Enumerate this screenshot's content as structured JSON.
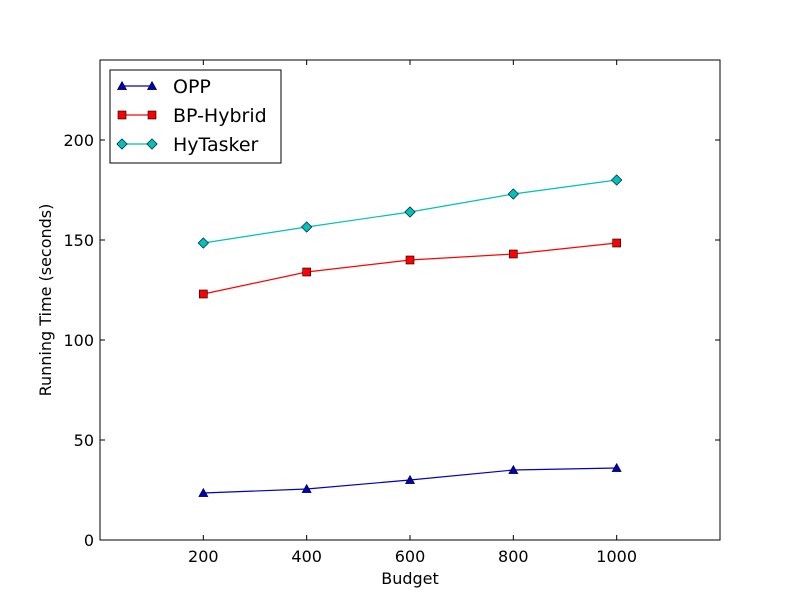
{
  "chart_data": {
    "type": "line",
    "title": "",
    "xlabel": "Budget",
    "ylabel": "Running Time (seconds)",
    "xlim": [
      0,
      1200
    ],
    "ylim": [
      0,
      240
    ],
    "x_ticks": [
      200,
      400,
      600,
      800,
      1000
    ],
    "y_ticks": [
      0,
      50,
      100,
      150,
      200
    ],
    "grid": false,
    "legend_placement": "upper-left",
    "x": [
      200,
      400,
      600,
      800,
      1000
    ],
    "series": [
      {
        "name": "OPP",
        "values": [
          23.5,
          25.5,
          30,
          35,
          36
        ],
        "color": "#0000bf",
        "marker": "triangle"
      },
      {
        "name": "BP-Hybrid",
        "values": [
          123,
          134,
          140,
          143,
          148.5
        ],
        "color": "#ff0000",
        "marker": "square"
      },
      {
        "name": "HyTasker",
        "values": [
          148.5,
          156.5,
          164,
          173,
          180
        ],
        "color": "#00bfbf",
        "marker": "diamond"
      }
    ]
  }
}
